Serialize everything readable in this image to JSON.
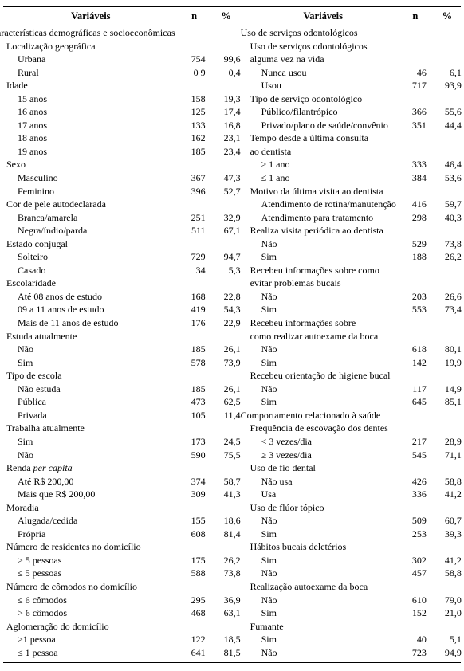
{
  "header": {
    "variaveis": "Variáveis",
    "n": "n",
    "pct": "%"
  },
  "left": [
    {
      "indent": 0,
      "label": "aracterísticas demográficas e socioeconômicas",
      "label_html": "aracterísticas demográficas e socioeconômicas"
    },
    {
      "indent": 1,
      "label": "Localização geográfica"
    },
    {
      "indent": 2,
      "label": "Urbana",
      "n": "754",
      "pct": "99,6"
    },
    {
      "indent": 2,
      "label": "Rural",
      "n": "0 9",
      "pct": "0,4"
    },
    {
      "indent": 1,
      "label": "Idade"
    },
    {
      "indent": 2,
      "label": "15 anos",
      "n": "158",
      "pct": "19,3"
    },
    {
      "indent": 2,
      "label": "16 anos",
      "n": "125",
      "pct": "17,4"
    },
    {
      "indent": 2,
      "label": "17 anos",
      "n": "133",
      "pct": "16,8"
    },
    {
      "indent": 2,
      "label": "18 anos",
      "n": "162",
      "pct": "23,1"
    },
    {
      "indent": 2,
      "label": "19 anos",
      "n": "185",
      "pct": "23,4"
    },
    {
      "indent": 1,
      "label": "Sexo"
    },
    {
      "indent": 2,
      "label": "Masculino",
      "n": "367",
      "pct": "47,3"
    },
    {
      "indent": 2,
      "label": "Feminino",
      "n": "396",
      "pct": "52,7"
    },
    {
      "indent": 1,
      "label": "Cor de pele autodeclarada"
    },
    {
      "indent": 2,
      "label": "Branca/amarela",
      "n": "251",
      "pct": "32,9"
    },
    {
      "indent": 2,
      "label": "Negra/índio/parda",
      "n": "511",
      "pct": "67,1"
    },
    {
      "indent": 1,
      "label": "Estado conjugal"
    },
    {
      "indent": 2,
      "label": "Solteiro",
      "n": "729",
      "pct": "94,7"
    },
    {
      "indent": 2,
      "label": "Casado",
      "n": "34",
      "pct": "5,3"
    },
    {
      "indent": 1,
      "label": "Escolaridade"
    },
    {
      "indent": 2,
      "label": "Até 08 anos de estudo",
      "n": "168",
      "pct": "22,8"
    },
    {
      "indent": 2,
      "label": "09 a 11 anos de estudo",
      "n": "419",
      "pct": "54,3"
    },
    {
      "indent": 2,
      "label": "Mais de 11 anos de estudo",
      "n": "176",
      "pct": "22,9"
    },
    {
      "indent": 1,
      "label": "Estuda atualmente"
    },
    {
      "indent": 2,
      "label": "Não",
      "n": "185",
      "pct": "26,1"
    },
    {
      "indent": 2,
      "label": "Sim",
      "n": "578",
      "pct": "73,9"
    },
    {
      "indent": 1,
      "label": "Tipo de escola"
    },
    {
      "indent": 2,
      "label": "Não estuda",
      "n": "185",
      "pct": "26,1"
    },
    {
      "indent": 2,
      "label": "Pública",
      "n": "473",
      "pct": "62,5"
    },
    {
      "indent": 2,
      "label": "Privada",
      "n": "105",
      "pct": "11,4"
    },
    {
      "indent": 1,
      "label": "Trabalha atualmente"
    },
    {
      "indent": 2,
      "label": "Sim",
      "n": "173",
      "pct": "24,5"
    },
    {
      "indent": 2,
      "label": "Não",
      "n": "590",
      "pct": "75,5"
    },
    {
      "indent": 1,
      "label": "Renda per capita",
      "label_html": "Renda <em class=\"pc\">per capita</em>"
    },
    {
      "indent": 2,
      "label": "Até R$ 200,00",
      "n": "374",
      "pct": "58,7"
    },
    {
      "indent": 2,
      "label": "Mais que R$ 200,00",
      "n": "309",
      "pct": "41,3"
    },
    {
      "indent": 1,
      "label": "Moradia"
    },
    {
      "indent": 2,
      "label": "Alugada/cedida",
      "n": "155",
      "pct": "18,6"
    },
    {
      "indent": 2,
      "label": "Própria",
      "n": "608",
      "pct": "81,4"
    },
    {
      "indent": 1,
      "label": "Número  de residentes no domicílio"
    },
    {
      "indent": 2,
      "label": "> 5 pessoas",
      "n": "175",
      "pct": "26,2"
    },
    {
      "indent": 2,
      "label": "≤ 5 pessoas",
      "n": "588",
      "pct": "73,8"
    },
    {
      "indent": 1,
      "label": "Número de cômodos no domicílio"
    },
    {
      "indent": 2,
      "label": "≤ 6 cômodos",
      "n": "295",
      "pct": "36,9"
    },
    {
      "indent": 2,
      "label": "> 6 cômodos",
      "n": "468",
      "pct": "63,1"
    },
    {
      "indent": 1,
      "label": "Aglomeração do domicílio"
    },
    {
      "indent": 2,
      "label": ">1 pessoa",
      "n": "122",
      "pct": "18,5"
    },
    {
      "indent": 2,
      "label": "≤ 1 pessoa",
      "n": "641",
      "pct": "81,5"
    }
  ],
  "right": [
    {
      "indent": 0,
      "label": "Uso de serviços odontológicos"
    },
    {
      "indent": 1,
      "label": "Uso de serviços odontológicos"
    },
    {
      "indent": 1,
      "label": "alguma vez na vida"
    },
    {
      "indent": 2,
      "label": "Nunca usou",
      "n": "46",
      "pct": "6,1"
    },
    {
      "indent": 2,
      "label": "Usou",
      "n": "717",
      "pct": "93,9"
    },
    {
      "indent": 1,
      "label": "Tipo de serviço odontológico"
    },
    {
      "indent": 2,
      "label": "Público/filantrópico",
      "n": "366",
      "pct": "55,6"
    },
    {
      "indent": 2,
      "label": "Privado/plano de saúde/convênio",
      "n": "351",
      "pct": "44,4"
    },
    {
      "indent": 1,
      "label": "Tempo desde a última consulta"
    },
    {
      "indent": 1,
      "label": "ao dentista"
    },
    {
      "indent": 2,
      "label": "≥ 1 ano",
      "n": "333",
      "pct": "46,4"
    },
    {
      "indent": 2,
      "label": "≤ 1 ano",
      "n": "384",
      "pct": "53,6"
    },
    {
      "indent": 1,
      "label": "Motivo da última visita ao dentista"
    },
    {
      "indent": 2,
      "label": "Atendimento de rotina/manutenção",
      "n": "416",
      "pct": "59,7"
    },
    {
      "indent": 2,
      "label": "Atendimento para tratamento",
      "n": "298",
      "pct": "40,3"
    },
    {
      "indent": 1,
      "label": "Realiza visita periódica ao dentista"
    },
    {
      "indent": 2,
      "label": "Não",
      "n": "529",
      "pct": "73,8"
    },
    {
      "indent": 2,
      "label": "Sim",
      "n": "188",
      "pct": "26,2"
    },
    {
      "indent": 1,
      "label": "Recebeu informações sobre como"
    },
    {
      "indent": 1,
      "label": "evitar problemas bucais"
    },
    {
      "indent": 2,
      "label": "Não",
      "n": "203",
      "pct": "26,6"
    },
    {
      "indent": 2,
      "label": "Sim",
      "n": "553",
      "pct": "73,4"
    },
    {
      "indent": 1,
      "label": "Recebeu informações sobre"
    },
    {
      "indent": 1,
      "label": "como realizar autoexame da boca"
    },
    {
      "indent": 2,
      "label": "Não",
      "n": "618",
      "pct": "80,1"
    },
    {
      "indent": 2,
      "label": "Sim",
      "n": "142",
      "pct": "19,9"
    },
    {
      "indent": 1,
      "label": "Recebeu orientação de higiene bucal"
    },
    {
      "indent": 2,
      "label": "Não",
      "n": "117",
      "pct": "14,9"
    },
    {
      "indent": 2,
      "label": "Sim",
      "n": "645",
      "pct": "85,1"
    },
    {
      "indent": 0,
      "label": "Comportamento relacionado à saúde"
    },
    {
      "indent": 1,
      "label": "Frequência de escovação dos dentes"
    },
    {
      "indent": 2,
      "label": "< 3 vezes/dia",
      "n": "217",
      "pct": "28,9"
    },
    {
      "indent": 2,
      "label": "≥ 3 vezes/dia",
      "n": "545",
      "pct": "71,1"
    },
    {
      "indent": 1,
      "label": "Uso de fio dental"
    },
    {
      "indent": 2,
      "label": "Não usa",
      "n": "426",
      "pct": "58,8"
    },
    {
      "indent": 2,
      "label": "Usa",
      "n": "336",
      "pct": "41,2"
    },
    {
      "indent": 1,
      "label": "Uso de flúor tópico"
    },
    {
      "indent": 2,
      "label": "Não",
      "n": "509",
      "pct": "60,7"
    },
    {
      "indent": 2,
      "label": "Sim",
      "n": "253",
      "pct": "39,3"
    },
    {
      "indent": 1,
      "label": "Hábitos bucais deletérios"
    },
    {
      "indent": 2,
      "label": "Sim",
      "n": "302",
      "pct": "41,2"
    },
    {
      "indent": 2,
      "label": "Não",
      "n": "457",
      "pct": "58,8"
    },
    {
      "indent": 1,
      "label": "Realização autoexame da boca"
    },
    {
      "indent": 2,
      "label": "Não",
      "n": "610",
      "pct": "79,0"
    },
    {
      "indent": 2,
      "label": "Sim",
      "n": "152",
      "pct": "21,0"
    },
    {
      "indent": 1,
      "label": "Fumante"
    },
    {
      "indent": 2,
      "label": "Sim",
      "n": "40",
      "pct": "5,1"
    },
    {
      "indent": 2,
      "label": "Não",
      "n": "723",
      "pct": "94,9"
    }
  ]
}
